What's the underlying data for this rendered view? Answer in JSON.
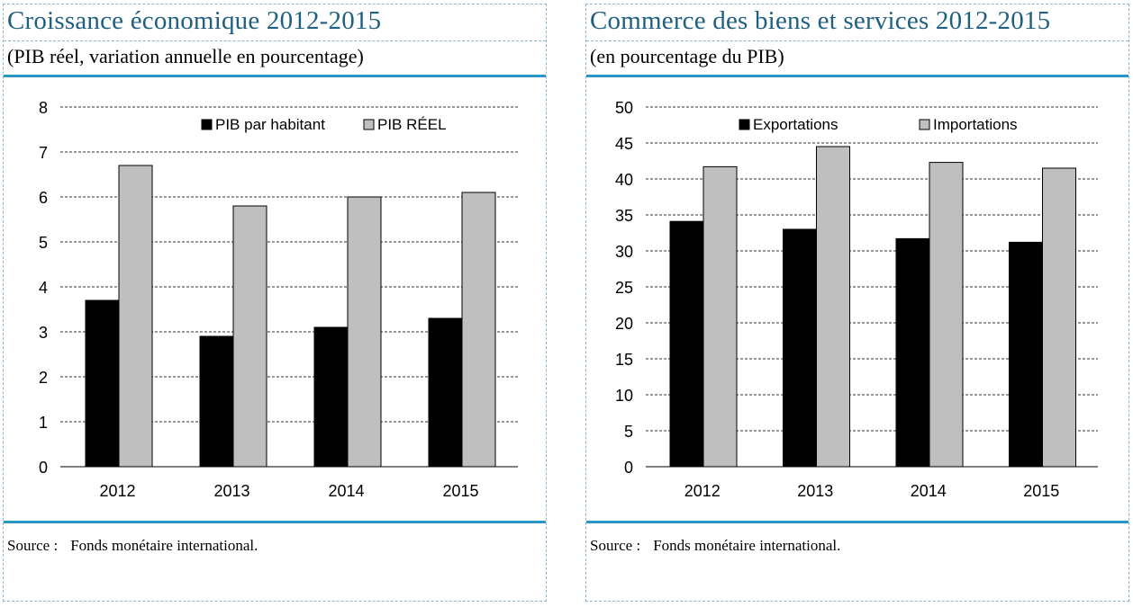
{
  "charts": [
    {
      "title": "Croissance économique 2012-2015",
      "subtitle": "(PIB réel, variation annuelle en pourcentage)",
      "source_label": "Source :",
      "source_text": "Fonds monétaire international."
    },
    {
      "title": "Commerce des biens et services 2012-2015",
      "subtitle": "(en pourcentage du PIB)",
      "source_label": "Source :",
      "source_text": "Fonds monétaire international."
    }
  ],
  "chart_data": [
    {
      "type": "bar",
      "categories": [
        "2012",
        "2013",
        "2014",
        "2015"
      ],
      "series": [
        {
          "name": "PIB par habitant",
          "values": [
            3.7,
            2.9,
            3.1,
            3.3
          ],
          "color": "#000000"
        },
        {
          "name": "PIB RÉEL",
          "values": [
            6.7,
            5.8,
            6.0,
            6.1
          ],
          "color": "#bfbfbf"
        }
      ],
      "ylim": [
        0,
        8
      ],
      "yticks": [
        0,
        1,
        2,
        3,
        4,
        5,
        6,
        7,
        8
      ],
      "grid": true,
      "legend": "top"
    },
    {
      "type": "bar",
      "categories": [
        "2012",
        "2013",
        "2014",
        "2015"
      ],
      "series": [
        {
          "name": "Exportations",
          "values": [
            34.1,
            33.0,
            31.7,
            31.2
          ],
          "color": "#000000"
        },
        {
          "name": "Importations",
          "values": [
            41.7,
            44.5,
            42.3,
            41.5
          ],
          "color": "#bfbfbf"
        }
      ],
      "ylim": [
        0,
        50
      ],
      "yticks": [
        0,
        5,
        10,
        15,
        20,
        25,
        30,
        35,
        40,
        45,
        50
      ],
      "grid": true,
      "legend": "top"
    }
  ]
}
